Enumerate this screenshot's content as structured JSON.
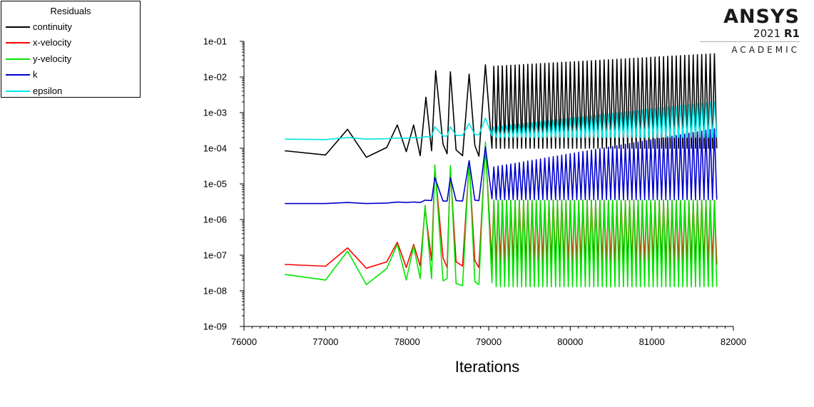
{
  "legend": {
    "title": "Residuals",
    "items": [
      {
        "label": "continuity",
        "color": "#000000"
      },
      {
        "label": "x-velocity",
        "color": "#ff0000"
      },
      {
        "label": "y-velocity",
        "color": "#00e600"
      },
      {
        "label": "k",
        "color": "#0000cc"
      },
      {
        "label": "epsilon",
        "color": "#00e5e5"
      }
    ]
  },
  "logo": {
    "brand": "ANSYS",
    "version": "2021",
    "release": "R1",
    "edition": "ACADEMIC"
  },
  "chart_data": {
    "type": "line",
    "xlabel": "Iterations",
    "ylabel": "",
    "xlim": [
      76000,
      82000
    ],
    "ylim": [
      1e-09,
      0.1
    ],
    "yscale": "log",
    "x_ticks": [
      76000,
      77000,
      78000,
      79000,
      80000,
      81000,
      82000
    ],
    "y_ticks": [
      "1e-09",
      "1e-08",
      "1e-07",
      "1e-06",
      "1e-05",
      "1e-04",
      "1e-03",
      "1e-02",
      "1e-01"
    ],
    "grid": false,
    "legend_position": "top-left",
    "x_end": 81830,
    "series": [
      {
        "name": "continuity",
        "color": "#000000",
        "points": [
          [
            76500,
            8.5e-05
          ],
          [
            77000,
            6.5e-05
          ],
          [
            77270,
            0.00034
          ],
          [
            77500,
            5.6e-05
          ],
          [
            77750,
            0.000105
          ],
          [
            77880,
            0.00045
          ],
          [
            77990,
            8e-05
          ],
          [
            78080,
            0.00045
          ],
          [
            78160,
            6.2e-05
          ],
          [
            78230,
            0.0027
          ],
          [
            78300,
            8.5e-05
          ],
          [
            78350,
            0.015
          ],
          [
            78440,
            0.00013
          ],
          [
            78490,
            7e-05
          ],
          [
            78530,
            0.014
          ],
          [
            78600,
            9e-05
          ],
          [
            78680,
            6.2e-05
          ],
          [
            78760,
            0.012
          ],
          [
            78830,
            0.00012
          ],
          [
            78880,
            6e-05
          ],
          [
            78960,
            0.022
          ],
          [
            79040,
            0.0001
          ]
        ],
        "periodic": {
          "start": 79040,
          "end": 81830,
          "period": 52,
          "low": 0.0001,
          "high_start": 0.02,
          "high_end": 0.045
        }
      },
      {
        "name": "x-velocity",
        "color": "#ff0000",
        "points": [
          [
            76500,
            5.5e-08
          ],
          [
            77000,
            4.9e-08
          ],
          [
            77270,
            1.6e-07
          ],
          [
            77500,
            4.3e-08
          ],
          [
            77750,
            6.5e-08
          ],
          [
            77880,
            2.3e-07
          ],
          [
            77990,
            4.5e-08
          ],
          [
            78080,
            2e-07
          ],
          [
            78160,
            5e-08
          ],
          [
            78220,
            2e-06
          ],
          [
            78300,
            7e-08
          ],
          [
            78340,
            3e-05
          ],
          [
            78440,
            8.5e-08
          ],
          [
            78490,
            4.5e-08
          ],
          [
            78530,
            2.5e-05
          ],
          [
            78600,
            6.5e-08
          ],
          [
            78680,
            5e-08
          ],
          [
            78760,
            4e-05
          ],
          [
            78830,
            7e-08
          ],
          [
            78880,
            4.5e-08
          ],
          [
            78960,
            0.00011
          ],
          [
            79040,
            6e-08
          ]
        ],
        "periodic": {
          "start": 79040,
          "end": 81830,
          "period": 52,
          "low": 5.5e-08,
          "high_start": 3.5e-06,
          "high_end": 3.5e-06
        }
      },
      {
        "name": "y-velocity",
        "color": "#00e600",
        "points": [
          [
            76500,
            2.9e-08
          ],
          [
            77000,
            2e-08
          ],
          [
            77270,
            1.3e-07
          ],
          [
            77500,
            1.5e-08
          ],
          [
            77750,
            4.2e-08
          ],
          [
            77880,
            2e-07
          ],
          [
            77990,
            2e-08
          ],
          [
            78080,
            1.8e-07
          ],
          [
            78160,
            2.2e-08
          ],
          [
            78220,
            2.5e-06
          ],
          [
            78300,
            2.2e-08
          ],
          [
            78340,
            3.4e-05
          ],
          [
            78440,
            1.9e-08
          ],
          [
            78490,
            2.2e-08
          ],
          [
            78530,
            3.3e-05
          ],
          [
            78600,
            1.6e-08
          ],
          [
            78680,
            1.4e-08
          ],
          [
            78760,
            4.5e-05
          ],
          [
            78830,
            1.8e-08
          ],
          [
            78880,
            1.5e-08
          ],
          [
            78960,
            0.00015
          ],
          [
            79040,
            1.7e-08
          ]
        ],
        "periodic": {
          "start": 79040,
          "end": 81830,
          "period": 52,
          "low": 1.3e-08,
          "high_start": 3.5e-06,
          "high_end": 3.5e-06
        }
      },
      {
        "name": "k",
        "color": "#0000cc",
        "points": [
          [
            76500,
            2.8e-06
          ],
          [
            77000,
            2.8e-06
          ],
          [
            77270,
            3e-06
          ],
          [
            77500,
            2.8e-06
          ],
          [
            77750,
            2.9e-06
          ],
          [
            77880,
            3.1e-06
          ],
          [
            77990,
            3e-06
          ],
          [
            78080,
            3.1e-06
          ],
          [
            78160,
            3e-06
          ],
          [
            78220,
            3.5e-06
          ],
          [
            78300,
            3.4e-06
          ],
          [
            78340,
            1.5e-05
          ],
          [
            78440,
            3.3e-06
          ],
          [
            78490,
            3.3e-06
          ],
          [
            78530,
            1.5e-05
          ],
          [
            78600,
            3.4e-06
          ],
          [
            78680,
            3.3e-06
          ],
          [
            78760,
            4.5e-05
          ],
          [
            78830,
            3.5e-06
          ],
          [
            78880,
            3.4e-06
          ],
          [
            78960,
            0.00011
          ],
          [
            79040,
            3.8e-06
          ]
        ],
        "periodic": {
          "start": 79040,
          "end": 81830,
          "period": 52,
          "low": 3.6e-06,
          "high_start": 3e-05,
          "high_end": 0.00035
        }
      },
      {
        "name": "epsilon",
        "color": "#00e5e5",
        "points": [
          [
            76500,
            0.00018
          ],
          [
            77000,
            0.000175
          ],
          [
            77270,
            0.0002
          ],
          [
            77500,
            0.00018
          ],
          [
            77750,
            0.000185
          ],
          [
            77880,
            0.000195
          ],
          [
            77990,
            0.00019
          ],
          [
            78080,
            0.0002
          ],
          [
            78160,
            0.000195
          ],
          [
            78220,
            0.00021
          ],
          [
            78300,
            0.00021
          ],
          [
            78340,
            0.0004
          ],
          [
            78440,
            0.00022
          ],
          [
            78490,
            0.00022
          ],
          [
            78530,
            0.0004
          ],
          [
            78600,
            0.00023
          ],
          [
            78680,
            0.00023
          ],
          [
            78760,
            0.0005
          ],
          [
            78830,
            0.00024
          ],
          [
            78880,
            0.00024
          ],
          [
            78960,
            0.0007
          ],
          [
            79040,
            0.00022
          ]
        ],
        "periodic": {
          "start": 79040,
          "end": 81830,
          "period": 52,
          "low": 0.0002,
          "high_start": 0.0004,
          "high_end": 0.002
        }
      }
    ]
  }
}
